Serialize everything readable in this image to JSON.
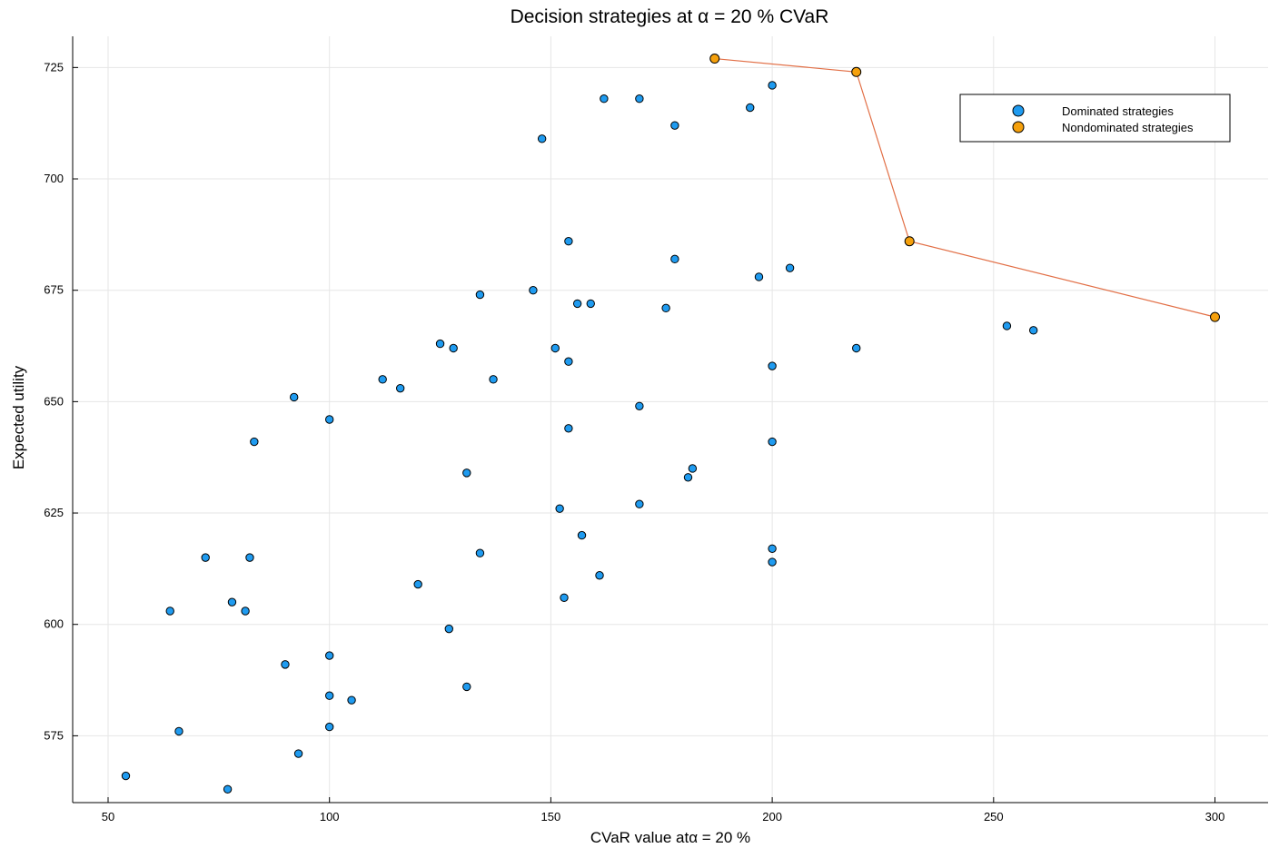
{
  "chart_data": {
    "type": "scatter",
    "title": "Decision strategies at α = 20 % CVaR",
    "xlabel": "CVaR value atα = 20 %",
    "ylabel": "Expected utility",
    "xlim": [
      42,
      312
    ],
    "ylim": [
      560,
      732
    ],
    "xticks": [
      50,
      100,
      150,
      200,
      250,
      300
    ],
    "yticks": [
      575,
      600,
      625,
      650,
      675,
      700,
      725
    ],
    "grid": true,
    "legend_position": "top-right",
    "series": [
      {
        "name": "Dominated strategies",
        "color": "#1f9bf0",
        "marker": "circle",
        "points": [
          [
            54,
            566
          ],
          [
            66,
            576
          ],
          [
            77,
            563
          ],
          [
            64,
            603
          ],
          [
            72,
            615
          ],
          [
            78,
            605
          ],
          [
            81,
            603
          ],
          [
            82,
            615
          ],
          [
            83,
            641
          ],
          [
            90,
            591
          ],
          [
            92,
            651
          ],
          [
            93,
            571
          ],
          [
            100,
            593
          ],
          [
            100,
            584
          ],
          [
            100,
            577
          ],
          [
            100,
            646
          ],
          [
            105,
            583
          ],
          [
            112,
            655
          ],
          [
            116,
            653
          ],
          [
            120,
            609
          ],
          [
            125,
            663
          ],
          [
            127,
            599
          ],
          [
            128,
            662
          ],
          [
            131,
            586
          ],
          [
            131,
            634
          ],
          [
            134,
            674
          ],
          [
            134,
            616
          ],
          [
            137,
            655
          ],
          [
            146,
            675
          ],
          [
            148,
            709
          ],
          [
            151,
            662
          ],
          [
            152,
            626
          ],
          [
            153,
            606
          ],
          [
            154,
            644
          ],
          [
            154,
            659
          ],
          [
            154,
            686
          ],
          [
            156,
            672
          ],
          [
            157,
            620
          ],
          [
            159,
            672
          ],
          [
            161,
            611
          ],
          [
            162,
            718
          ],
          [
            170,
            718
          ],
          [
            170,
            649
          ],
          [
            170,
            627
          ],
          [
            176,
            671
          ],
          [
            178,
            712
          ],
          [
            178,
            682
          ],
          [
            181,
            633
          ],
          [
            182,
            635
          ],
          [
            195,
            716
          ],
          [
            197,
            678
          ],
          [
            200,
            721
          ],
          [
            200,
            658
          ],
          [
            200,
            641
          ],
          [
            200,
            617
          ],
          [
            200,
            614
          ],
          [
            204,
            680
          ],
          [
            219,
            662
          ],
          [
            253,
            667
          ],
          [
            259,
            666
          ]
        ]
      },
      {
        "name": "Nondominated strategies",
        "color": "#f5a00c",
        "marker": "circle",
        "connected": true,
        "line_color": "#e26f46",
        "points": [
          [
            187,
            727
          ],
          [
            219,
            724
          ],
          [
            231,
            686
          ],
          [
            300,
            669
          ]
        ]
      }
    ]
  }
}
